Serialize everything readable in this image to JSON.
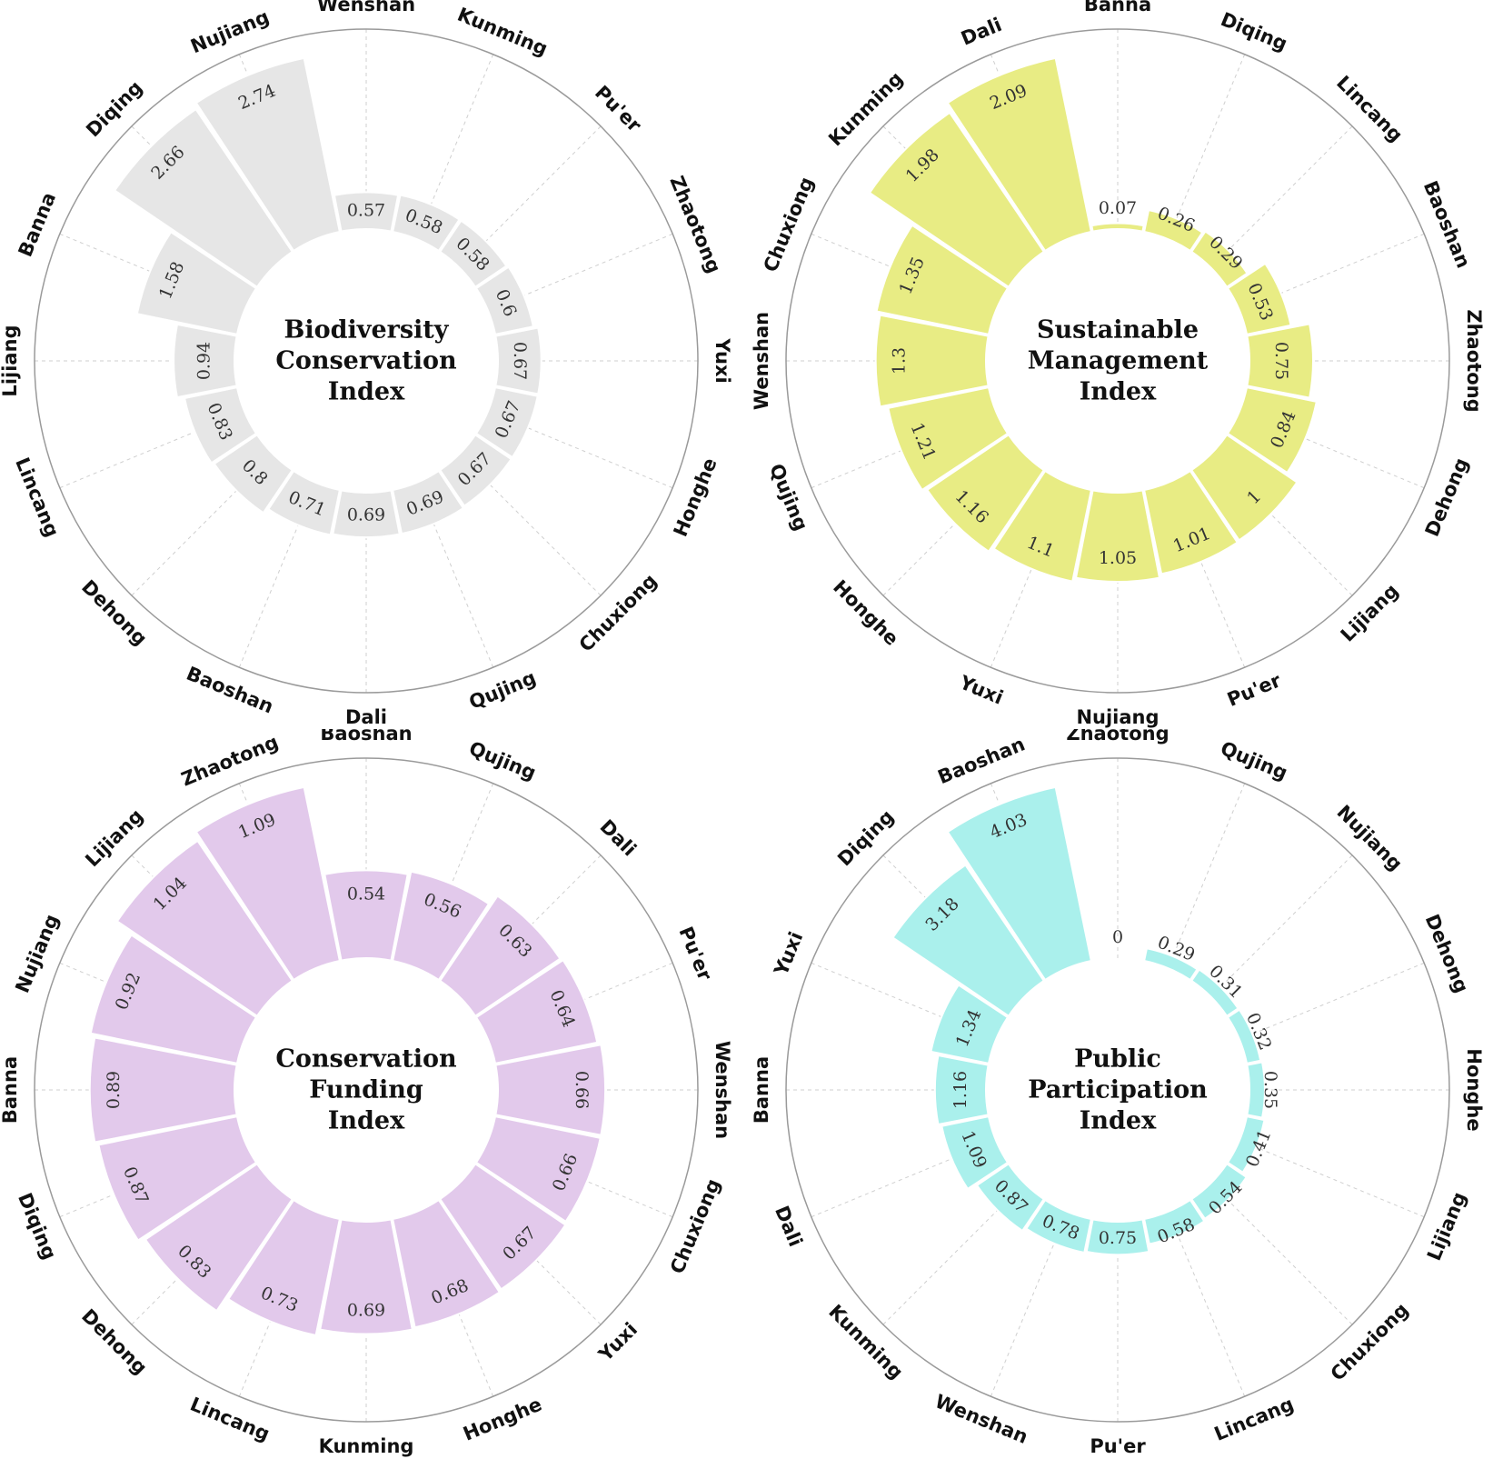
{
  "chart_data": [
    {
      "type": "radial-bar",
      "title": [
        "Biodiversity",
        "Conservation",
        "Index"
      ],
      "color": "#e6e6e6",
      "rmax": 2.74,
      "items": [
        {
          "label": "Wenshan",
          "value": 0.57
        },
        {
          "label": "Kunming",
          "value": 0.58
        },
        {
          "label": "Pu'er",
          "value": 0.58
        },
        {
          "label": "Zhaotong",
          "value": 0.6
        },
        {
          "label": "Yuxi",
          "value": 0.67
        },
        {
          "label": "Honghe",
          "value": 0.67
        },
        {
          "label": "Chuxiong",
          "value": 0.67
        },
        {
          "label": "Qujing",
          "value": 0.69
        },
        {
          "label": "Dali",
          "value": 0.69
        },
        {
          "label": "Baoshan",
          "value": 0.71
        },
        {
          "label": "Dehong",
          "value": 0.8
        },
        {
          "label": "Lincang",
          "value": 0.83
        },
        {
          "label": "Lijiang",
          "value": 0.94
        },
        {
          "label": "Banna",
          "value": 1.58
        },
        {
          "label": "Diqing",
          "value": 2.66
        },
        {
          "label": "Nujiang",
          "value": 2.74
        }
      ]
    },
    {
      "type": "radial-bar",
      "title": [
        "Sustainable",
        "Management",
        "Index"
      ],
      "color": "#e8ec84",
      "rmax": 2.09,
      "items": [
        {
          "label": "Banna",
          "value": 0.07
        },
        {
          "label": "Diqing",
          "value": 0.26
        },
        {
          "label": "Lincang",
          "value": 0.29
        },
        {
          "label": "Baoshan",
          "value": 0.53
        },
        {
          "label": "Zhaotong",
          "value": 0.75
        },
        {
          "label": "Dehong",
          "value": 0.84
        },
        {
          "label": "Lijiang",
          "value": 1
        },
        {
          "label": "Pu'er",
          "value": 1.01
        },
        {
          "label": "Nujiang",
          "value": 1.05
        },
        {
          "label": "Yuxi",
          "value": 1.1
        },
        {
          "label": "Honghe",
          "value": 1.16
        },
        {
          "label": "Qujing",
          "value": 1.21
        },
        {
          "label": "Wenshan",
          "value": 1.3
        },
        {
          "label": "Chuxiong",
          "value": 1.35
        },
        {
          "label": "Kunming",
          "value": 1.98
        },
        {
          "label": "Dali",
          "value": 2.09
        }
      ]
    },
    {
      "type": "radial-bar",
      "title": [
        "Conservation",
        "Funding",
        "Index"
      ],
      "color": "#e2c9eb",
      "rmax": 1.09,
      "items": [
        {
          "label": "Baoshan",
          "value": 0.54
        },
        {
          "label": "Qujing",
          "value": 0.56
        },
        {
          "label": "Dali",
          "value": 0.63
        },
        {
          "label": "Pu'er",
          "value": 0.64
        },
        {
          "label": "Wenshan",
          "value": 0.66
        },
        {
          "label": "Chuxiong",
          "value": 0.66
        },
        {
          "label": "Yuxi",
          "value": 0.67
        },
        {
          "label": "Honghe",
          "value": 0.68
        },
        {
          "label": "Kunming",
          "value": 0.69
        },
        {
          "label": "Lincang",
          "value": 0.73
        },
        {
          "label": "Dehong",
          "value": 0.83
        },
        {
          "label": "Diqing",
          "value": 0.87
        },
        {
          "label": "Banna",
          "value": 0.89
        },
        {
          "label": "Nujiang",
          "value": 0.92
        },
        {
          "label": "Lijiang",
          "value": 1.04
        },
        {
          "label": "Zhaotong",
          "value": 1.09
        }
      ]
    },
    {
      "type": "radial-bar",
      "title": [
        "Public",
        "Participation",
        "Index"
      ],
      "color": "#aaf0ec",
      "rmax": 4.03,
      "items": [
        {
          "label": "Zhaotong",
          "value": 0
        },
        {
          "label": "Qujing",
          "value": 0.29
        },
        {
          "label": "Nujiang",
          "value": 0.31
        },
        {
          "label": "Dehong",
          "value": 0.32
        },
        {
          "label": "Honghe",
          "value": 0.35
        },
        {
          "label": "Lijiang",
          "value": 0.41
        },
        {
          "label": "Chuxiong",
          "value": 0.54
        },
        {
          "label": "Lincang",
          "value": 0.58
        },
        {
          "label": "Pu'er",
          "value": 0.75
        },
        {
          "label": "Wenshan",
          "value": 0.78
        },
        {
          "label": "Kunming",
          "value": 0.87
        },
        {
          "label": "Dali",
          "value": 1.09
        },
        {
          "label": "Banna",
          "value": 1.16
        },
        {
          "label": "Yuxi",
          "value": 1.34
        },
        {
          "label": "Diqing",
          "value": 3.18
        },
        {
          "label": "Baoshan",
          "value": 4.03
        }
      ]
    }
  ]
}
